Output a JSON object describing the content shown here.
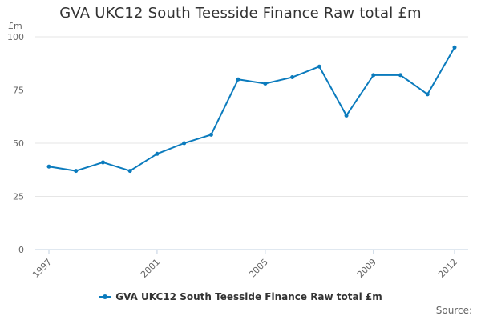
{
  "colors": {
    "series": "#0b7bbd",
    "grid": "#e6e6e6",
    "axis": "#c0d0e0",
    "text": "#333333",
    "muted": "#666666"
  },
  "chart_data": {
    "type": "line",
    "title": "GVA UKC12 South Teesside Finance Raw total £m",
    "ylabel": "£m",
    "xlabel": "",
    "ylim": [
      0,
      100
    ],
    "yticks": [
      0,
      25,
      50,
      75,
      100
    ],
    "xlim": [
      1997,
      2012
    ],
    "xticks": [
      1997,
      2001,
      2005,
      2009,
      2012
    ],
    "grid": true,
    "legend": "bottom-center",
    "x": [
      1997,
      1998,
      1999,
      2000,
      2001,
      2002,
      2003,
      2004,
      2005,
      2006,
      2007,
      2008,
      2009,
      2010,
      2011,
      2012
    ],
    "series": [
      {
        "name": "GVA UKC12 South Teesside Finance Raw total £m",
        "values": [
          39,
          37,
          41,
          37,
          45,
          50,
          54,
          80,
          78,
          81,
          86,
          63,
          82,
          82,
          73,
          95
        ]
      }
    ]
  },
  "footer": {
    "source_label": "Source:"
  }
}
